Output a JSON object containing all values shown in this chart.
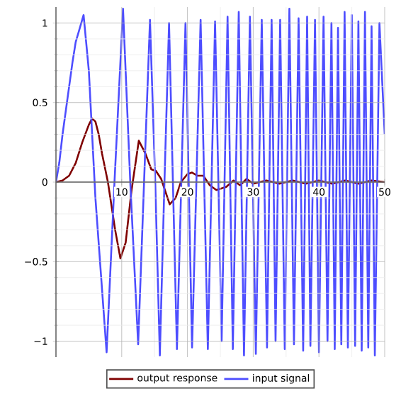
{
  "chart_data": {
    "type": "line",
    "xlim": [
      0,
      50
    ],
    "ylim": [
      -1.1,
      1.1
    ],
    "xticks": [
      10,
      20,
      30,
      40,
      50
    ],
    "yticks": [
      {
        "value": -1,
        "label": "−1"
      },
      {
        "value": -0.5,
        "label": "−0.5"
      },
      0,
      0.5,
      1
    ],
    "grid": true,
    "legend": "bottom",
    "series": [
      {
        "name": "output response",
        "color": "#7f0000",
        "x": [
          0,
          1,
          2,
          3,
          4,
          5,
          5.5,
          6,
          6.5,
          7,
          7.9,
          9,
          9.8,
          10.6,
          11.5,
          12.6,
          13.6,
          14.5,
          15.2,
          16,
          17.3,
          18.2,
          19,
          20,
          20.7,
          21.5,
          22.4,
          23.4,
          24.4,
          25.9,
          27,
          28,
          29,
          30,
          32,
          34,
          36,
          38,
          40,
          42,
          44,
          46,
          48,
          50
        ],
        "values": [
          0,
          0.01,
          0.04,
          0.12,
          0.25,
          0.36,
          0.4,
          0.38,
          0.3,
          0.18,
          0,
          -0.3,
          -0.48,
          -0.38,
          -0.05,
          0.26,
          0.18,
          0.08,
          0.07,
          0.02,
          -0.14,
          -0.1,
          0,
          0.05,
          0.06,
          0.04,
          0.04,
          -0.02,
          -0.05,
          -0.03,
          0.01,
          -0.02,
          0.02,
          -0.01,
          0.01,
          -0.01,
          0.01,
          -0.01,
          0.01,
          -0.01,
          0.01,
          -0.01,
          0.01,
          0
        ]
      },
      {
        "name": "input signal",
        "color": "#4d4dff",
        "x": [
          0,
          0.5,
          1,
          1.5,
          2,
          2.5,
          3,
          3.5,
          4.2,
          5,
          6,
          7.7,
          8.9,
          10.2,
          11.3,
          12.5,
          13.4,
          14.3,
          15.1,
          15.8,
          16.5,
          17.2,
          18.4,
          19.7,
          20.7,
          22.0,
          23.1,
          24.2,
          25.2,
          26.1,
          26.9,
          27.8,
          28.6,
          29.5,
          30.4,
          31.3,
          32.1,
          32.8,
          33.4,
          34.1,
          34.8,
          35.5,
          36.2,
          36.9,
          37.6,
          38.2,
          38.7,
          39.4,
          40.0,
          40.7,
          41.3,
          41.9,
          42.4,
          42.9,
          43.4,
          43.9,
          44.4,
          45.0,
          45.5,
          46.0,
          46.5,
          47.0,
          47.5,
          48.0,
          48.5,
          49.2,
          50
        ],
        "values": [
          0,
          0.12,
          0.3,
          0.45,
          0.6,
          0.75,
          0.88,
          0.95,
          1.05,
          0.7,
          -0.1,
          -1.07,
          0,
          1.09,
          0,
          -1.02,
          0,
          1.02,
          0,
          -1.09,
          0,
          1.0,
          -1.05,
          1.0,
          -1.04,
          1.02,
          -1.05,
          1.01,
          -1.0,
          1.04,
          -1.05,
          1.07,
          -1.09,
          1.04,
          -1.08,
          1.02,
          -1.04,
          1.02,
          -1.0,
          1.02,
          -1.05,
          1.09,
          -1.02,
          1.03,
          -1.06,
          1.04,
          -1.03,
          1.02,
          -1.07,
          1.04,
          -1.0,
          1.0,
          -1.05,
          0.97,
          -1.02,
          1.07,
          -1.04,
          1.05,
          -1.03,
          1.01,
          -1.06,
          1.07,
          -1.04,
          0.98,
          -1.09,
          1.0,
          0.3
        ]
      }
    ]
  }
}
